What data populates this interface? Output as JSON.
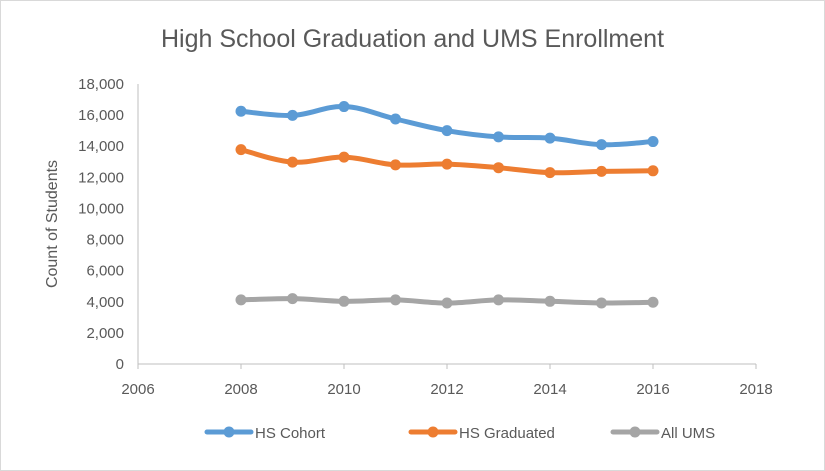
{
  "chart_data": {
    "type": "scatter",
    "title": "High School Graduation and UMS Enrollment",
    "xlabel": "",
    "ylabel": "Count of Students",
    "xlim": [
      2006,
      2018
    ],
    "ylim": [
      0,
      18000
    ],
    "xticks": [
      "2006",
      "2008",
      "2010",
      "2012",
      "2014",
      "2016",
      "2018"
    ],
    "yticks": [
      "0",
      "2,000",
      "4,000",
      "6,000",
      "8,000",
      "10,000",
      "12,000",
      "14,000",
      "16,000",
      "18,000"
    ],
    "grid": false,
    "legend_position": "bottom",
    "x": [
      2008,
      2009,
      2010,
      2011,
      2012,
      2013,
      2014,
      2015,
      2016
    ],
    "series": [
      {
        "name": "HS Cohort",
        "color": "#5b9bd5",
        "values": [
          16250,
          15980,
          16550,
          15750,
          15000,
          14600,
          14520,
          14100,
          14300
        ]
      },
      {
        "name": "HS Graduated",
        "color": "#ed7d31",
        "values": [
          13780,
          12980,
          13300,
          12800,
          12850,
          12620,
          12300,
          12380,
          12420
        ]
      },
      {
        "name": "All UMS",
        "color": "#a5a5a5",
        "values": [
          4120,
          4200,
          4030,
          4120,
          3920,
          4120,
          4030,
          3920,
          3970
        ]
      }
    ]
  }
}
